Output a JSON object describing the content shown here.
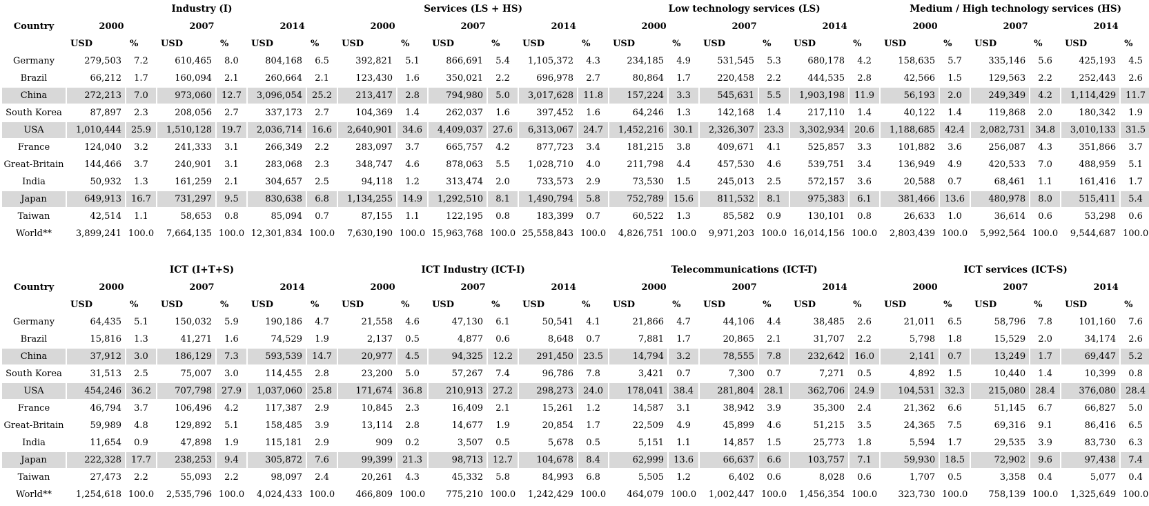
{
  "page": {
    "background": "#ffffff",
    "highlight_color": "#d8d8d8",
    "highlighted_countries": [
      "China",
      "USA",
      "Japan"
    ]
  },
  "tables": [
    {
      "country_header": "Country",
      "years": [
        "2000",
        "2007",
        "2014"
      ],
      "unit_headers": [
        "USD",
        "%"
      ],
      "groups": [
        "Industry (I)",
        "Services (LS + HS)",
        "Low technology services (LS)",
        "Medium / High technology services (HS)"
      ],
      "rows": [
        {
          "country": "Germany",
          "highlight": false,
          "cells": [
            "279,503",
            "7.2",
            "610,465",
            "8.0",
            "804,168",
            "6.5",
            "392,821",
            "5.1",
            "866,691",
            "5.4",
            "1,105,372",
            "4.3",
            "234,185",
            "4.9",
            "531,545",
            "5.3",
            "680,178",
            "4.2",
            "158,635",
            "5.7",
            "335,146",
            "5.6",
            "425,193",
            "4.5"
          ]
        },
        {
          "country": "Brazil",
          "highlight": false,
          "cells": [
            "66,212",
            "1.7",
            "160,094",
            "2.1",
            "260,664",
            "2.1",
            "123,430",
            "1.6",
            "350,021",
            "2.2",
            "696,978",
            "2.7",
            "80,864",
            "1.7",
            "220,458",
            "2.2",
            "444,535",
            "2.8",
            "42,566",
            "1.5",
            "129,563",
            "2.2",
            "252,443",
            "2.6"
          ]
        },
        {
          "country": "China",
          "highlight": true,
          "cells": [
            "272,213",
            "7.0",
            "973,060",
            "12.7",
            "3,096,054",
            "25.2",
            "213,417",
            "2.8",
            "794,980",
            "5.0",
            "3,017,628",
            "11.8",
            "157,224",
            "3.3",
            "545,631",
            "5.5",
            "1,903,198",
            "11.9",
            "56,193",
            "2.0",
            "249,349",
            "4.2",
            "1,114,429",
            "11.7"
          ]
        },
        {
          "country": "South Korea",
          "highlight": false,
          "cells": [
            "87,897",
            "2.3",
            "208,056",
            "2.7",
            "337,173",
            "2.7",
            "104,369",
            "1.4",
            "262,037",
            "1.6",
            "397,452",
            "1.6",
            "64,246",
            "1.3",
            "142,168",
            "1.4",
            "217,110",
            "1.4",
            "40,122",
            "1.4",
            "119,868",
            "2.0",
            "180,342",
            "1.9"
          ]
        },
        {
          "country": "USA",
          "highlight": true,
          "cells": [
            "1,010,444",
            "25.9",
            "1,510,128",
            "19.7",
            "2,036,714",
            "16.6",
            "2,640,901",
            "34.6",
            "4,409,037",
            "27.6",
            "6,313,067",
            "24.7",
            "1,452,216",
            "30.1",
            "2,326,307",
            "23.3",
            "3,302,934",
            "20.6",
            "1,188,685",
            "42.4",
            "2,082,731",
            "34.8",
            "3,010,133",
            "31.5"
          ]
        },
        {
          "country": "France",
          "highlight": false,
          "cells": [
            "124,040",
            "3.2",
            "241,333",
            "3.1",
            "266,349",
            "2.2",
            "283,097",
            "3.7",
            "665,757",
            "4.2",
            "877,723",
            "3.4",
            "181,215",
            "3.8",
            "409,671",
            "4.1",
            "525,857",
            "3.3",
            "101,882",
            "3.6",
            "256,087",
            "4.3",
            "351,866",
            "3.7"
          ]
        },
        {
          "country": "Great-Britain",
          "highlight": false,
          "cells": [
            "144,466",
            "3.7",
            "240,901",
            "3.1",
            "283,068",
            "2.3",
            "348,747",
            "4.6",
            "878,063",
            "5.5",
            "1,028,710",
            "4.0",
            "211,798",
            "4.4",
            "457,530",
            "4.6",
            "539,751",
            "3.4",
            "136,949",
            "4.9",
            "420,533",
            "7.0",
            "488,959",
            "5.1"
          ]
        },
        {
          "country": "India",
          "highlight": false,
          "cells": [
            "50,932",
            "1.3",
            "161,259",
            "2.1",
            "304,657",
            "2.5",
            "94,118",
            "1.2",
            "313,474",
            "2.0",
            "733,573",
            "2.9",
            "73,530",
            "1.5",
            "245,013",
            "2.5",
            "572,157",
            "3.6",
            "20,588",
            "0.7",
            "68,461",
            "1.1",
            "161,416",
            "1.7"
          ]
        },
        {
          "country": "Japan",
          "highlight": true,
          "cells": [
            "649,913",
            "16.7",
            "731,297",
            "9.5",
            "830,638",
            "6.8",
            "1,134,255",
            "14.9",
            "1,292,510",
            "8.1",
            "1,490,794",
            "5.8",
            "752,789",
            "15.6",
            "811,532",
            "8.1",
            "975,383",
            "6.1",
            "381,466",
            "13.6",
            "480,978",
            "8.0",
            "515,411",
            "5.4"
          ]
        },
        {
          "country": "Taiwan",
          "highlight": false,
          "cells": [
            "42,514",
            "1.1",
            "58,653",
            "0.8",
            "85,094",
            "0.7",
            "87,155",
            "1.1",
            "122,195",
            "0.8",
            "183,399",
            "0.7",
            "60,522",
            "1.3",
            "85,582",
            "0.9",
            "130,101",
            "0.8",
            "26,633",
            "1.0",
            "36,614",
            "0.6",
            "53,298",
            "0.6"
          ]
        },
        {
          "country": "World**",
          "highlight": false,
          "cells": [
            "3,899,241",
            "100.0",
            "7,664,135",
            "100.0",
            "12,301,834",
            "100.0",
            "7,630,190",
            "100.0",
            "15,963,768",
            "100.0",
            "25,558,843",
            "100.0",
            "4,826,751",
            "100.0",
            "9,971,203",
            "100.0",
            "16,014,156",
            "100.0",
            "2,803,439",
            "100.0",
            "5,992,564",
            "100.0",
            "9,544,687",
            "100.0"
          ]
        }
      ]
    },
    {
      "country_header": "Country",
      "years": [
        "2000",
        "2007",
        "2014"
      ],
      "unit_headers": [
        "USD",
        "%"
      ],
      "groups": [
        "ICT (I+T+S)",
        "ICT Industry (ICT-I)",
        "Telecommunications (ICT-T)",
        "ICT services (ICT-S)"
      ],
      "rows": [
        {
          "country": "Germany",
          "highlight": false,
          "cells": [
            "64,435",
            "5.1",
            "150,032",
            "5.9",
            "190,186",
            "4.7",
            "21,558",
            "4.6",
            "47,130",
            "6.1",
            "50,541",
            "4.1",
            "21,866",
            "4.7",
            "44,106",
            "4.4",
            "38,485",
            "2.6",
            "21,011",
            "6.5",
            "58,796",
            "7.8",
            "101,160",
            "7.6"
          ]
        },
        {
          "country": "Brazil",
          "highlight": false,
          "cells": [
            "15,816",
            "1.3",
            "41,271",
            "1.6",
            "74,529",
            "1.9",
            "2,137",
            "0.5",
            "4,877",
            "0.6",
            "8,648",
            "0.7",
            "7,881",
            "1.7",
            "20,865",
            "2.1",
            "31,707",
            "2.2",
            "5,798",
            "1.8",
            "15,529",
            "2.0",
            "34,174",
            "2.6"
          ]
        },
        {
          "country": "China",
          "highlight": true,
          "cells": [
            "37,912",
            "3.0",
            "186,129",
            "7.3",
            "593,539",
            "14.7",
            "20,977",
            "4.5",
            "94,325",
            "12.2",
            "291,450",
            "23.5",
            "14,794",
            "3.2",
            "78,555",
            "7.8",
            "232,642",
            "16.0",
            "2,141",
            "0.7",
            "13,249",
            "1.7",
            "69,447",
            "5.2"
          ]
        },
        {
          "country": "South Korea",
          "highlight": false,
          "cells": [
            "31,513",
            "2.5",
            "75,007",
            "3.0",
            "114,455",
            "2.8",
            "23,200",
            "5.0",
            "57,267",
            "7.4",
            "96,786",
            "7.8",
            "3,421",
            "0.7",
            "7,300",
            "0.7",
            "7,271",
            "0.5",
            "4,892",
            "1.5",
            "10,440",
            "1.4",
            "10,399",
            "0.8"
          ]
        },
        {
          "country": "USA",
          "highlight": true,
          "cells": [
            "454,246",
            "36.2",
            "707,798",
            "27.9",
            "1,037,060",
            "25.8",
            "171,674",
            "36.8",
            "210,913",
            "27.2",
            "298,273",
            "24.0",
            "178,041",
            "38.4",
            "281,804",
            "28.1",
            "362,706",
            "24.9",
            "104,531",
            "32.3",
            "215,080",
            "28.4",
            "376,080",
            "28.4"
          ]
        },
        {
          "country": "France",
          "highlight": false,
          "cells": [
            "46,794",
            "3.7",
            "106,496",
            "4.2",
            "117,387",
            "2.9",
            "10,845",
            "2.3",
            "16,409",
            "2.1",
            "15,261",
            "1.2",
            "14,587",
            "3.1",
            "38,942",
            "3.9",
            "35,300",
            "2.4",
            "21,362",
            "6.6",
            "51,145",
            "6.7",
            "66,827",
            "5.0"
          ]
        },
        {
          "country": "Great-Britain",
          "highlight": false,
          "cells": [
            "59,989",
            "4.8",
            "129,892",
            "5.1",
            "158,485",
            "3.9",
            "13,114",
            "2.8",
            "14,677",
            "1.9",
            "20,854",
            "1.7",
            "22,509",
            "4.9",
            "45,899",
            "4.6",
            "51,215",
            "3.5",
            "24,365",
            "7.5",
            "69,316",
            "9.1",
            "86,416",
            "6.5"
          ]
        },
        {
          "country": "India",
          "highlight": false,
          "cells": [
            "11,654",
            "0.9",
            "47,898",
            "1.9",
            "115,181",
            "2.9",
            "909",
            "0.2",
            "3,507",
            "0.5",
            "5,678",
            "0.5",
            "5,151",
            "1.1",
            "14,857",
            "1.5",
            "25,773",
            "1.8",
            "5,594",
            "1.7",
            "29,535",
            "3.9",
            "83,730",
            "6.3"
          ]
        },
        {
          "country": "Japan",
          "highlight": true,
          "cells": [
            "222,328",
            "17.7",
            "238,253",
            "9.4",
            "305,872",
            "7.6",
            "99,399",
            "21.3",
            "98,713",
            "12.7",
            "104,678",
            "8.4",
            "62,999",
            "13.6",
            "66,637",
            "6.6",
            "103,757",
            "7.1",
            "59,930",
            "18.5",
            "72,902",
            "9.6",
            "97,438",
            "7.4"
          ]
        },
        {
          "country": "Taiwan",
          "highlight": false,
          "cells": [
            "27,473",
            "2.2",
            "55,093",
            "2.2",
            "98,097",
            "2.4",
            "20,261",
            "4.3",
            "45,332",
            "5.8",
            "84,993",
            "6.8",
            "5,505",
            "1.2",
            "6,402",
            "0.6",
            "8,028",
            "0.6",
            "1,707",
            "0.5",
            "3,358",
            "0.4",
            "5,077",
            "0.4"
          ]
        },
        {
          "country": "World**",
          "highlight": false,
          "cells": [
            "1,254,618",
            "100.0",
            "2,535,796",
            "100.0",
            "4,024,433",
            "100.0",
            "466,809",
            "100.0",
            "775,210",
            "100.0",
            "1,242,429",
            "100.0",
            "464,079",
            "100.0",
            "1,002,447",
            "100.0",
            "1,456,354",
            "100.0",
            "323,730",
            "100.0",
            "758,139",
            "100.0",
            "1,325,649",
            "100.0"
          ]
        }
      ]
    }
  ]
}
